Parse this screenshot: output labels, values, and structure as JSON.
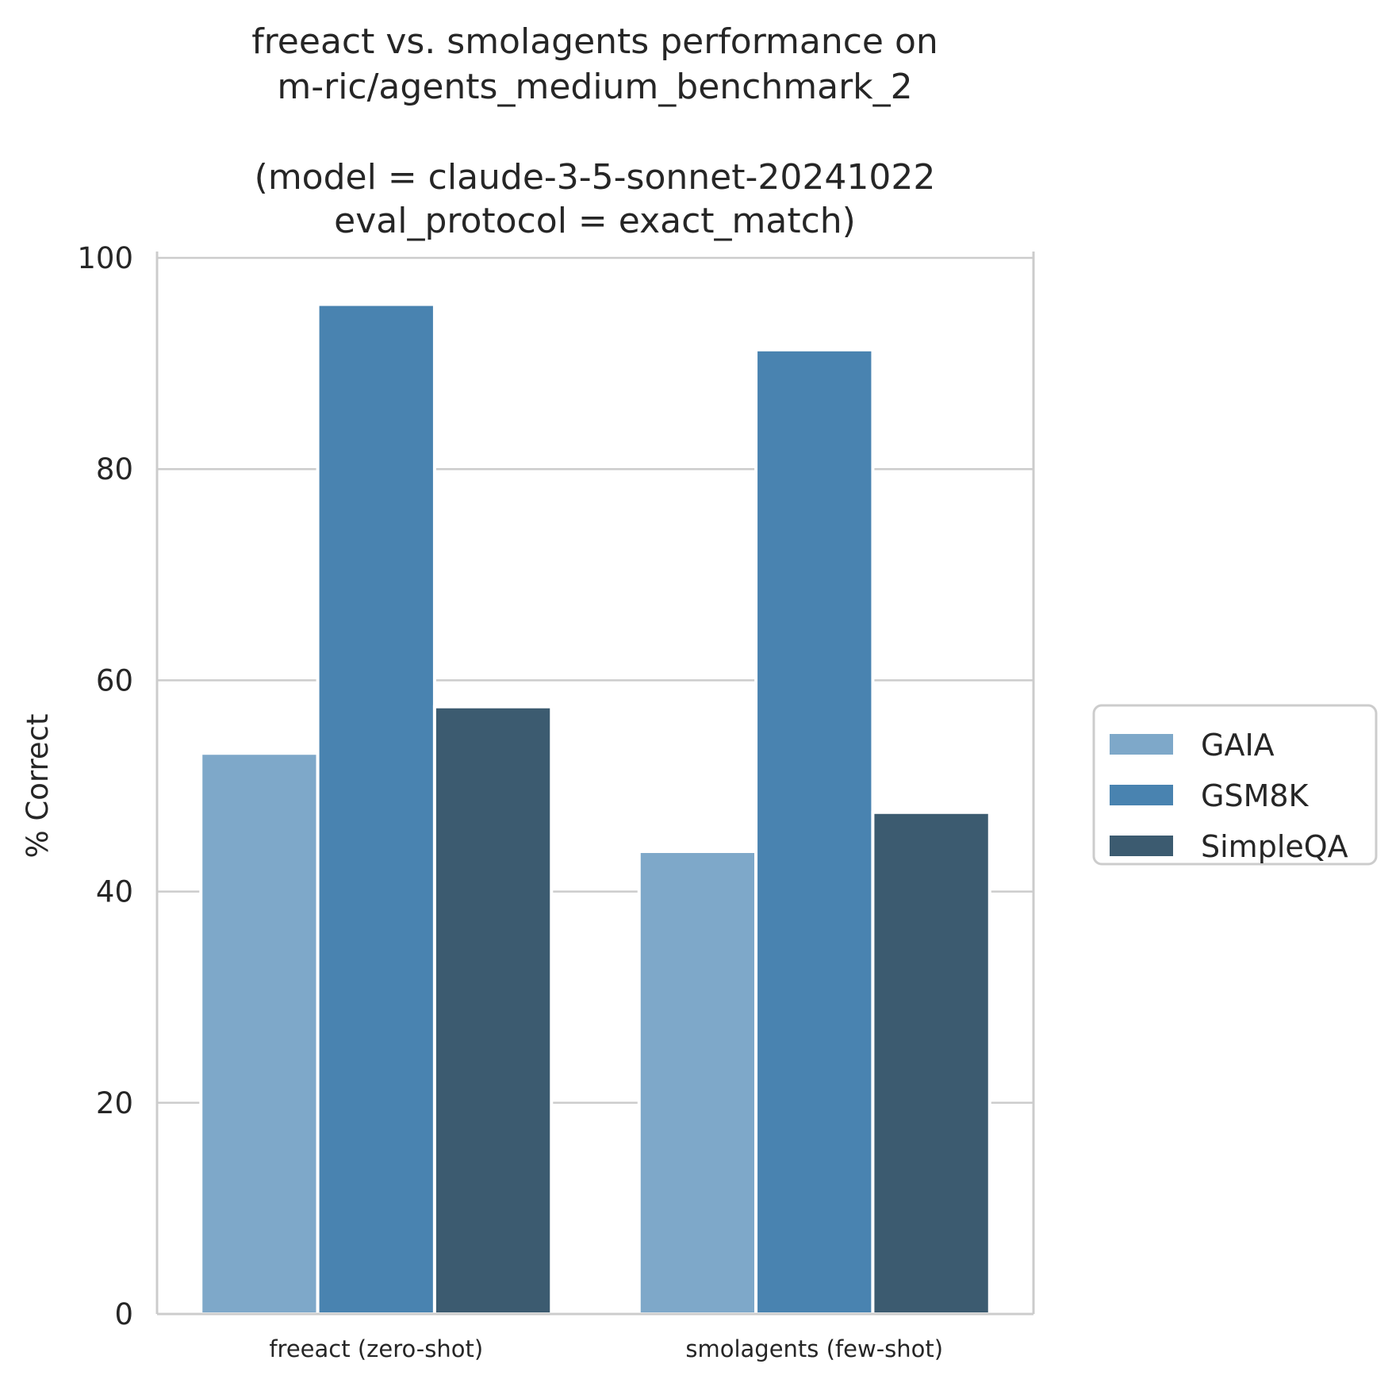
{
  "chart_data": {
    "type": "bar",
    "title_lines": [
      "freeact vs. smolagents performance on",
      "m-ric/agents_medium_benchmark_2",
      "",
      "(model = claude-3-5-sonnet-20241022",
      "eval_protocol = exact_match)"
    ],
    "xlabel": "",
    "ylabel": "% Correct",
    "categories": [
      "freeact (zero-shot)",
      "smolagents (few-shot)"
    ],
    "series": [
      {
        "name": "GAIA",
        "color": "#7ea8c9",
        "values": [
          53.1,
          43.8
        ]
      },
      {
        "name": "GSM8K",
        "color": "#4983b0",
        "values": [
          95.6,
          91.3
        ]
      },
      {
        "name": "SimpleQA",
        "color": "#3c5b70",
        "values": [
          57.5,
          47.5
        ]
      }
    ],
    "ylim": [
      0,
      100
    ],
    "yticks": [
      0,
      20,
      40,
      60,
      80,
      100
    ],
    "grid": "y",
    "legend_position": "center-right"
  }
}
